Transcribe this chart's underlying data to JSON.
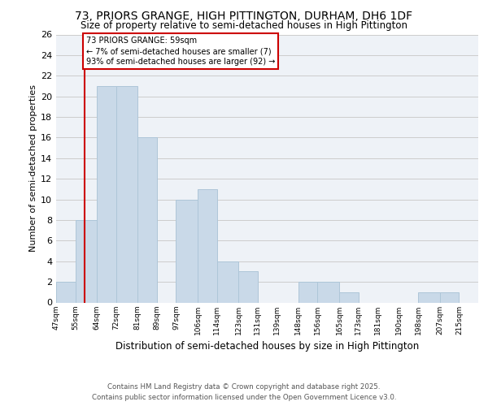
{
  "title_line1": "73, PRIORS GRANGE, HIGH PITTINGTON, DURHAM, DH6 1DF",
  "title_line2": "Size of property relative to semi-detached houses in High Pittington",
  "xlabel": "Distribution of semi-detached houses by size in High Pittington",
  "ylabel": "Number of semi-detached properties",
  "footer_line1": "Contains HM Land Registry data © Crown copyright and database right 2025.",
  "footer_line2": "Contains public sector information licensed under the Open Government Licence v3.0.",
  "annotation_line1": "73 PRIORS GRANGE: 59sqm",
  "annotation_line2": "← 7% of semi-detached houses are smaller (7)",
  "annotation_line3": "93% of semi-detached houses are larger (92) →",
  "property_size": 59,
  "bin_edges": [
    47,
    55,
    64,
    72,
    81,
    89,
    97,
    106,
    114,
    123,
    131,
    139,
    148,
    156,
    165,
    173,
    181,
    190,
    198,
    207,
    215
  ],
  "bin_labels": [
    "47sqm",
    "55sqm",
    "64sqm",
    "72sqm",
    "81sqm",
    "89sqm",
    "97sqm",
    "106sqm",
    "114sqm",
    "123sqm",
    "131sqm",
    "139sqm",
    "148sqm",
    "156sqm",
    "165sqm",
    "173sqm",
    "181sqm",
    "190sqm",
    "198sqm",
    "207sqm",
    "215sqm"
  ],
  "counts": [
    2,
    8,
    21,
    21,
    16,
    0,
    10,
    11,
    4,
    3,
    0,
    0,
    2,
    2,
    1,
    0,
    0,
    0,
    1,
    1,
    0
  ],
  "bar_color": "#c9d9e8",
  "bar_edge_color": "#aec6d8",
  "vline_color": "#cc0000",
  "vline_x": 59,
  "annotation_box_color": "#cc0000",
  "ylim": [
    0,
    26
  ],
  "yticks": [
    0,
    2,
    4,
    6,
    8,
    10,
    12,
    14,
    16,
    18,
    20,
    22,
    24,
    26
  ],
  "grid_color": "#cccccc",
  "background_color": "#eef2f7"
}
